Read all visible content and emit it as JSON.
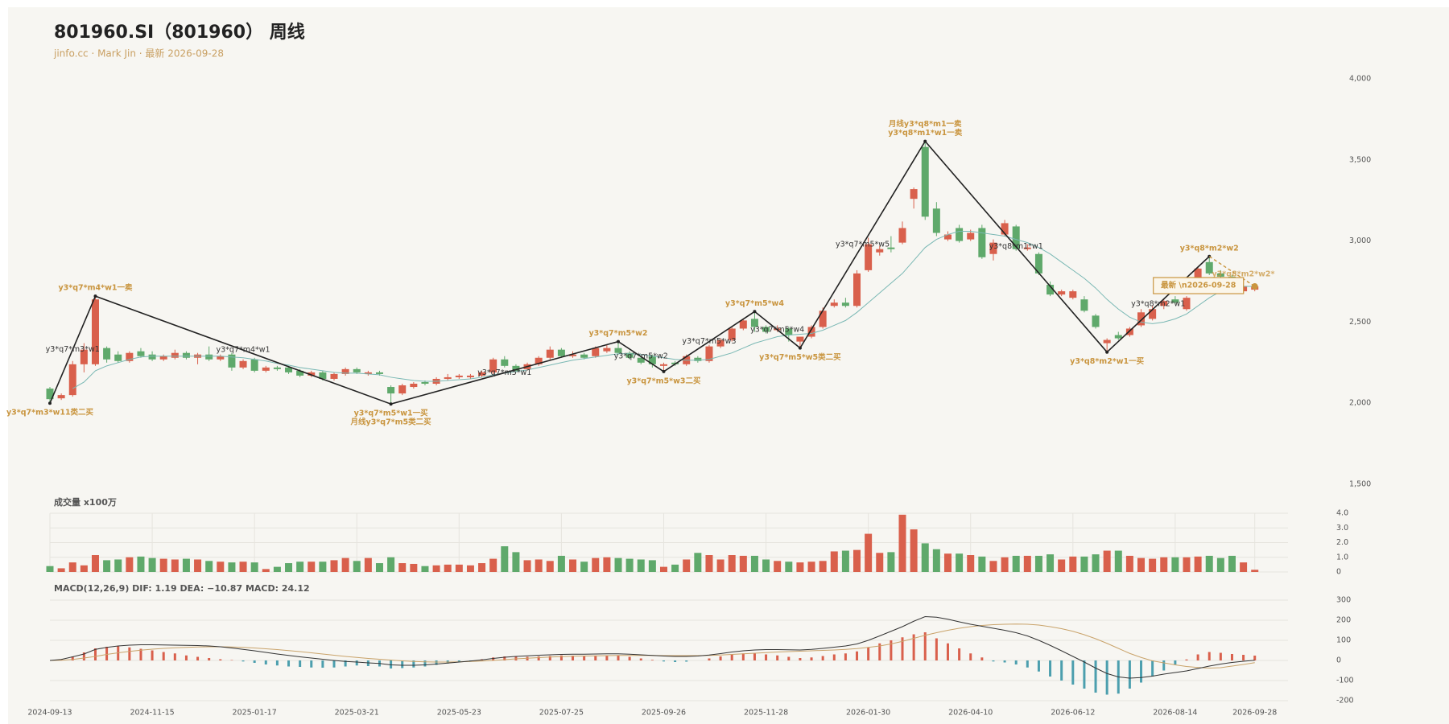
{
  "chart_data": {
    "type": "candlestick",
    "title": "801960.SI（801960） 周线",
    "subtitle": "jinfo.cc · Mark Jin · 最新 2026-09-28",
    "categories": [
      "2024-09-13",
      null,
      null,
      null,
      null,
      null,
      null,
      null,
      null,
      "2024-11-15",
      null,
      null,
      null,
      null,
      null,
      null,
      null,
      null,
      "2025-01-17",
      null,
      null,
      null,
      null,
      null,
      null,
      null,
      null,
      "2025-03-21",
      null,
      null,
      null,
      null,
      null,
      null,
      null,
      null,
      "2025-05-23",
      null,
      null,
      null,
      null,
      null,
      null,
      null,
      null,
      "2025-07-25",
      null,
      null,
      null,
      null,
      null,
      null,
      null,
      null,
      "2025-09-26",
      null,
      null,
      null,
      null,
      null,
      null,
      null,
      null,
      "2025-11-28",
      null,
      null,
      null,
      null,
      null,
      null,
      null,
      null,
      "2026-01-30",
      null,
      null,
      null,
      null,
      null,
      null,
      null,
      null,
      "2026-04-10",
      null,
      null,
      null,
      null,
      null,
      null,
      null,
      null,
      "2026-06-12",
      null,
      null,
      null,
      null,
      null,
      null,
      null,
      null,
      "2026-08-14",
      null,
      null,
      null,
      null,
      null,
      null,
      "2026-09-28"
    ],
    "candles": [
      [
        2090,
        2100,
        2000,
        2025
      ],
      [
        2030,
        2060,
        2020,
        2050
      ],
      [
        2050,
        2260,
        2040,
        2240
      ],
      [
        2240,
        2370,
        2190,
        2330
      ],
      [
        2240,
        2660,
        2230,
        2640
      ],
      [
        2340,
        2350,
        2250,
        2270
      ],
      [
        2300,
        2320,
        2250,
        2260
      ],
      [
        2260,
        2320,
        2250,
        2310
      ],
      [
        2320,
        2340,
        2280,
        2290
      ],
      [
        2300,
        2320,
        2260,
        2270
      ],
      [
        2270,
        2300,
        2260,
        2290
      ],
      [
        2280,
        2330,
        2270,
        2310
      ],
      [
        2310,
        2320,
        2270,
        2280
      ],
      [
        2280,
        2310,
        2240,
        2300
      ],
      [
        2300,
        2350,
        2260,
        2270
      ],
      [
        2270,
        2300,
        2260,
        2290
      ],
      [
        2300,
        2310,
        2200,
        2220
      ],
      [
        2220,
        2270,
        2210,
        2260
      ],
      [
        2270,
        2280,
        2190,
        2200
      ],
      [
        2200,
        2230,
        2190,
        2220
      ],
      [
        2220,
        2230,
        2200,
        2210
      ],
      [
        2220,
        2230,
        2180,
        2190
      ],
      [
        2200,
        2210,
        2160,
        2170
      ],
      [
        2170,
        2200,
        2160,
        2190
      ],
      [
        2190,
        2200,
        2140,
        2150
      ],
      [
        2150,
        2190,
        2140,
        2180
      ],
      [
        2180,
        2220,
        2170,
        2210
      ],
      [
        2210,
        2220,
        2180,
        2190
      ],
      [
        2180,
        2200,
        2170,
        2190
      ],
      [
        2190,
        2200,
        2170,
        2180
      ],
      [
        2100,
        2110,
        1995,
        2060
      ],
      [
        2060,
        2120,
        2050,
        2110
      ],
      [
        2100,
        2130,
        2090,
        2120
      ],
      [
        2130,
        2140,
        2110,
        2120
      ],
      [
        2120,
        2160,
        2110,
        2150
      ],
      [
        2150,
        2180,
        2140,
        2160
      ],
      [
        2160,
        2180,
        2150,
        2170
      ],
      [
        2160,
        2180,
        2150,
        2170
      ],
      [
        2170,
        2200,
        2160,
        2190
      ],
      [
        2190,
        2280,
        2180,
        2270
      ],
      [
        2270,
        2290,
        2220,
        2230
      ],
      [
        2230,
        2240,
        2190,
        2200
      ],
      [
        2210,
        2250,
        2200,
        2240
      ],
      [
        2240,
        2290,
        2230,
        2280
      ],
      [
        2280,
        2350,
        2270,
        2330
      ],
      [
        2330,
        2340,
        2280,
        2290
      ],
      [
        2290,
        2320,
        2280,
        2300
      ],
      [
        2300,
        2310,
        2270,
        2280
      ],
      [
        2290,
        2350,
        2280,
        2340
      ],
      [
        2320,
        2360,
        2310,
        2340
      ],
      [
        2340,
        2380,
        2300,
        2310
      ],
      [
        2310,
        2320,
        2270,
        2280
      ],
      [
        2280,
        2290,
        2240,
        2250
      ],
      [
        2290,
        2300,
        2220,
        2240
      ],
      [
        2230,
        2250,
        2195,
        2240
      ],
      [
        2250,
        2260,
        2230,
        2240
      ],
      [
        2240,
        2300,
        2230,
        2290
      ],
      [
        2280,
        2290,
        2250,
        2260
      ],
      [
        2260,
        2360,
        2250,
        2350
      ],
      [
        2350,
        2400,
        2340,
        2390
      ],
      [
        2390,
        2470,
        2380,
        2460
      ],
      [
        2460,
        2520,
        2450,
        2510
      ],
      [
        2520,
        2565,
        2440,
        2470
      ],
      [
        2470,
        2480,
        2430,
        2440
      ],
      [
        2450,
        2480,
        2440,
        2460
      ],
      [
        2460,
        2470,
        2380,
        2420
      ],
      [
        2380,
        2400,
        2340,
        2410
      ],
      [
        2410,
        2480,
        2400,
        2470
      ],
      [
        2470,
        2590,
        2460,
        2570
      ],
      [
        2600,
        2640,
        2590,
        2620
      ],
      [
        2620,
        2650,
        2590,
        2600
      ],
      [
        2600,
        2820,
        2590,
        2800
      ],
      [
        2820,
        3020,
        2810,
        2980
      ],
      [
        2930,
        2970,
        2910,
        2950
      ],
      [
        2960,
        3030,
        2930,
        2950
      ],
      [
        2990,
        3120,
        2980,
        3080
      ],
      [
        3260,
        3330,
        3200,
        3320
      ],
      [
        3580,
        3615,
        3130,
        3150
      ],
      [
        3200,
        3240,
        3030,
        3050
      ],
      [
        3010,
        3060,
        3000,
        3040
      ],
      [
        3080,
        3100,
        2990,
        3000
      ],
      [
        3010,
        3070,
        3000,
        3050
      ],
      [
        3080,
        3100,
        2890,
        2900
      ],
      [
        2920,
        3010,
        2880,
        2990
      ],
      [
        3040,
        3130,
        3030,
        3110
      ],
      [
        3090,
        3100,
        2940,
        2950
      ],
      [
        2950,
        2980,
        2940,
        2960
      ],
      [
        2920,
        2930,
        2790,
        2800
      ],
      [
        2730,
        2750,
        2660,
        2670
      ],
      [
        2670,
        2700,
        2660,
        2690
      ],
      [
        2650,
        2700,
        2640,
        2690
      ],
      [
        2640,
        2660,
        2560,
        2570
      ],
      [
        2540,
        2550,
        2460,
        2470
      ],
      [
        2370,
        2400,
        2315,
        2390
      ],
      [
        2420,
        2440,
        2390,
        2400
      ],
      [
        2420,
        2470,
        2410,
        2460
      ],
      [
        2480,
        2580,
        2470,
        2560
      ],
      [
        2520,
        2600,
        2510,
        2580
      ],
      [
        2600,
        2640,
        2580,
        2630
      ],
      [
        2640,
        2660,
        2610,
        2620
      ],
      [
        2580,
        2660,
        2570,
        2650
      ],
      [
        2740,
        2840,
        2730,
        2830
      ],
      [
        2870,
        2905,
        2790,
        2800
      ],
      [
        2800,
        2820,
        2750,
        2780
      ],
      [
        2780,
        2790,
        2710,
        2720
      ],
      [
        2690,
        2730,
        2680,
        2720
      ],
      [
        2700,
        2730,
        2690,
        2720
      ]
    ],
    "up_color": "#d9604c",
    "down_color": "#5fa96b",
    "ylim": [
      1500,
      4000
    ],
    "yticks": [
      {
        "value": 1500,
        "label": "1,500"
      },
      {
        "value": 2000,
        "label": "2,000"
      },
      {
        "value": 2500,
        "label": "2,500"
      },
      {
        "value": 3000,
        "label": "3,000"
      },
      {
        "value": 3500,
        "label": "3,500"
      },
      {
        "value": 4000,
        "label": "4,000"
      }
    ],
    "ma": {
      "color": "#7ab8b4",
      "values": [
        null,
        null,
        2090,
        2130,
        2200,
        2230,
        2250,
        2270,
        2285,
        2290,
        2290,
        2290,
        2290,
        2290,
        2290,
        2290,
        2285,
        2280,
        2270,
        2260,
        2245,
        2235,
        2220,
        2210,
        2200,
        2190,
        2185,
        2185,
        2180,
        2175,
        2160,
        2150,
        2140,
        2135,
        2135,
        2140,
        2145,
        2150,
        2160,
        2175,
        2185,
        2195,
        2205,
        2220,
        2235,
        2250,
        2265,
        2275,
        2285,
        2295,
        2305,
        2305,
        2300,
        2290,
        2280,
        2270,
        2265,
        2265,
        2270,
        2290,
        2310,
        2340,
        2370,
        2390,
        2410,
        2420,
        2425,
        2430,
        2450,
        2480,
        2510,
        2560,
        2620,
        2680,
        2740,
        2800,
        2880,
        2960,
        3010,
        3040,
        3060,
        3060,
        3050,
        3040,
        3030,
        3010,
        2990,
        2960,
        2920,
        2870,
        2820,
        2770,
        2710,
        2640,
        2580,
        2530,
        2500,
        2490,
        2500,
        2520,
        2550,
        2600,
        2650,
        2690,
        2710,
        2720,
        2720
      ]
    },
    "zigzag": {
      "color": "#222222",
      "index": [
        0,
        4,
        30,
        50,
        54,
        62,
        66,
        77,
        93,
        102
      ],
      "values": [
        2000,
        2660,
        1995,
        2380,
        2195,
        2565,
        2340,
        3615,
        2315,
        2905
      ],
      "vertex_labels": [
        [
          "y3*q7*m3*w11类二买"
        ],
        [
          "y3*q7*m4*w1一卖"
        ],
        [
          "y3*q7*m5*w1一买",
          "月线y3*q7*m5类二买"
        ],
        [
          "y3*q7*m5*w2"
        ],
        [
          "y3*q7*m5*w3二买"
        ],
        [
          "y3*q7*m5*w4"
        ],
        [
          "y3*q7*m5*w5类二买"
        ],
        [
          "月线y3*q8*m1一卖",
          "y3*q8*m1*w1一卖"
        ],
        [
          "y3*q8*m2*w1一买"
        ],
        [
          "y3*q8*m2*w2"
        ]
      ],
      "segment_labels": [
        "y3*q7*m3*w1",
        "y3*q7*m4*w1",
        "y3*q7*m5*w1",
        "y3*q7*m5*w2",
        "y3*q7*m5*w3",
        "y3*q7*m5*w4",
        "y3*q7*m5*w5",
        "y3*q8*m1*w1",
        "y3*q8*m2*w1"
      ]
    },
    "pending": {
      "color": "#c9953f",
      "index": [
        102,
        106
      ],
      "values": [
        2905,
        2720
      ],
      "label": "y3*q8*m2*w2*"
    },
    "latest_label": "最新 \\n2026-09-28",
    "volume": {
      "label": "成交量 x100万",
      "values": [
        0.4,
        0.25,
        0.65,
        0.45,
        1.15,
        0.8,
        0.85,
        1.0,
        1.05,
        0.95,
        0.9,
        0.85,
        0.9,
        0.85,
        0.75,
        0.7,
        0.65,
        0.7,
        0.65,
        0.2,
        0.35,
        0.6,
        0.7,
        0.7,
        0.7,
        0.8,
        0.95,
        0.75,
        0.95,
        0.6,
        1.0,
        0.6,
        0.55,
        0.4,
        0.45,
        0.5,
        0.5,
        0.45,
        0.6,
        0.9,
        1.75,
        1.35,
        0.8,
        0.85,
        0.75,
        1.1,
        0.85,
        0.7,
        0.95,
        1.0,
        0.95,
        0.9,
        0.85,
        0.8,
        0.35,
        0.5,
        0.85,
        1.3,
        1.15,
        0.85,
        1.15,
        1.1,
        1.1,
        0.85,
        0.75,
        0.7,
        0.65,
        0.7,
        0.75,
        1.4,
        1.45,
        1.5,
        2.6,
        1.3,
        1.35,
        3.9,
        2.9,
        1.95,
        1.55,
        1.25,
        1.25,
        1.15,
        1.05,
        0.75,
        1.0,
        1.1,
        1.1,
        1.1,
        1.2,
        0.85,
        1.05,
        1.05,
        1.2,
        1.45,
        1.45,
        1.1,
        0.95,
        0.9,
        1.0,
        1.0,
        1.0,
        1.05,
        1.1,
        0.95,
        1.1,
        0.65,
        0.15
      ],
      "ylim": [
        0,
        4
      ],
      "yticks": [
        0,
        {
          "value": 1,
          "label": "1.0"
        },
        {
          "value": 2,
          "label": "2.0"
        },
        {
          "value": 3,
          "label": "3.0"
        },
        {
          "value": 4,
          "label": "4.0"
        }
      ]
    },
    "macd": {
      "label": "MACD(12,26,9) DIF: 1.19 DEA: −10.87 MACD: 24.12",
      "pos_color": "#d9604c",
      "neg_color": "#4c9fae",
      "hist": [
        0,
        5,
        20,
        40,
        60,
        68,
        70,
        65,
        58,
        50,
        42,
        35,
        25,
        18,
        12,
        6,
        2,
        -5,
        -12,
        -20,
        -25,
        -30,
        -32,
        -35,
        -36,
        -35,
        -30,
        -25,
        -28,
        -30,
        -40,
        -38,
        -35,
        -30,
        -22,
        -15,
        -8,
        -2,
        6,
        15,
        20,
        20,
        18,
        20,
        22,
        25,
        24,
        22,
        24,
        25,
        24,
        18,
        10,
        3,
        -5,
        -8,
        -6,
        0,
        10,
        20,
        30,
        35,
        35,
        30,
        25,
        18,
        12,
        15,
        22,
        30,
        35,
        45,
        65,
        85,
        100,
        115,
        130,
        140,
        110,
        85,
        60,
        35,
        15,
        -5,
        -10,
        -20,
        -35,
        -55,
        -80,
        -100,
        -120,
        -140,
        -160,
        -170,
        -165,
        -140,
        -110,
        -80,
        -50,
        -20,
        5,
        30,
        42,
        38,
        32,
        28,
        24.12
      ],
      "dif": {
        "color": "#333333",
        "values": [
          0,
          5,
          18,
          32,
          55,
          65,
          72,
          76,
          78,
          78,
          77,
          76,
          75,
          74,
          72,
          68,
          62,
          55,
          48,
          40,
          32,
          25,
          18,
          12,
          6,
          0,
          -5,
          -8,
          -12,
          -15,
          -22,
          -24,
          -24,
          -22,
          -18,
          -13,
          -8,
          -3,
          3,
          10,
          16,
          20,
          23,
          26,
          28,
          30,
          31,
          31,
          32,
          33,
          33,
          31,
          28,
          25,
          22,
          20,
          20,
          22,
          27,
          34,
          42,
          48,
          52,
          54,
          54,
          53,
          52,
          55,
          60,
          66,
          72,
          82,
          100,
          122,
          145,
          168,
          195,
          218,
          215,
          205,
          192,
          180,
          170,
          160,
          150,
          138,
          122,
          100,
          75,
          48,
          20,
          -8,
          -38,
          -65,
          -82,
          -88,
          -85,
          -78,
          -68,
          -60,
          -52,
          -40,
          -28,
          -18,
          -10,
          -4,
          1.19
        ]
      },
      "dea": {
        "color": "#c9a36a",
        "values": [
          0,
          1,
          5,
          12,
          20,
          30,
          38,
          45,
          51,
          56,
          60,
          63,
          65,
          67,
          68,
          68,
          67,
          65,
          62,
          58,
          54,
          49,
          44,
          38,
          32,
          26,
          20,
          15,
          10,
          6,
          2,
          -2,
          -5,
          -7,
          -8,
          -8,
          -7,
          -5,
          -3,
          0,
          4,
          8,
          11,
          14,
          17,
          19,
          21,
          22,
          23,
          24,
          25,
          25,
          25,
          25,
          24,
          24,
          24,
          24,
          25,
          27,
          30,
          33,
          36,
          39,
          42,
          44,
          46,
          48,
          50,
          52,
          55,
          59,
          65,
          72,
          82,
          95,
          110,
          125,
          138,
          150,
          160,
          168,
          174,
          178,
          180,
          181,
          180,
          176,
          168,
          158,
          145,
          128,
          108,
          85,
          60,
          35,
          15,
          -2,
          -12,
          -22,
          -30,
          -35,
          -38,
          -36,
          -28,
          -20,
          -10.87
        ]
      },
      "ylim": [
        -200,
        300
      ],
      "yticks": [
        -200,
        -100,
        0,
        100,
        200,
        300
      ]
    }
  }
}
